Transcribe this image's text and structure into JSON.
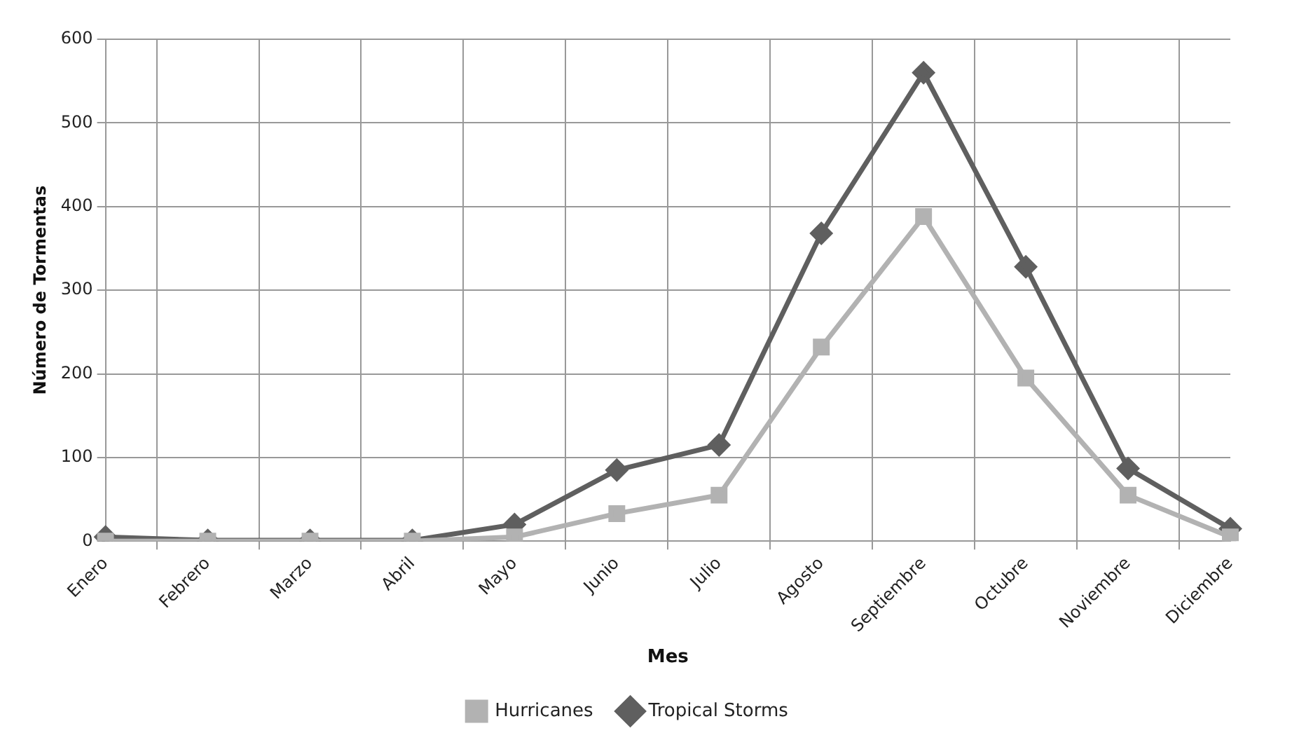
{
  "chart_data": {
    "type": "line",
    "xlabel": "Mes",
    "ylabel": "Número de Tormentas",
    "categories": [
      "Enero",
      "Febrero",
      "Marzo",
      "Abril",
      "Mayo",
      "Junio",
      "Julio",
      "Agosto",
      "Septiembre",
      "Octubre",
      "Noviembre",
      "Diciembre"
    ],
    "series": [
      {
        "name": "Tropical Storms",
        "color": "#5f5f5f",
        "marker": "diamond",
        "values": [
          5,
          1,
          1,
          1,
          20,
          85,
          115,
          368,
          560,
          328,
          87,
          15
        ]
      },
      {
        "name": "Hurricanes",
        "color": "#b2b2b2",
        "marker": "square",
        "values": [
          0,
          0,
          0,
          0,
          5,
          33,
          55,
          232,
          388,
          195,
          55,
          5
        ]
      }
    ],
    "ylim": [
      0,
      600
    ],
    "yticks": [
      0,
      100,
      200,
      300,
      400,
      500,
      600
    ],
    "grid": true,
    "legend": "bottom"
  }
}
